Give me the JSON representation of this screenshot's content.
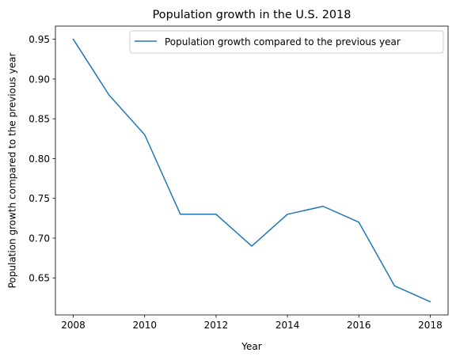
{
  "chart_data": {
    "type": "line",
    "title": "Population growth in the U.S. 2018",
    "xlabel": "Year",
    "ylabel": "Population growth compared to the previous year",
    "x": [
      2008,
      2009,
      2010,
      2011,
      2012,
      2013,
      2014,
      2015,
      2016,
      2017,
      2018
    ],
    "series": [
      {
        "name": "Population growth compared to the previous year",
        "color": "#1f77b4",
        "values": [
          0.95,
          0.88,
          0.83,
          0.73,
          0.73,
          0.69,
          0.73,
          0.74,
          0.72,
          0.64,
          0.62
        ]
      }
    ],
    "x_ticks": [
      2008,
      2010,
      2012,
      2014,
      2016,
      2018
    ],
    "x_tick_labels": [
      "2008",
      "2010",
      "2012",
      "2014",
      "2016",
      "2018"
    ],
    "y_ticks": [
      0.65,
      0.7,
      0.75,
      0.8,
      0.85,
      0.9,
      0.95
    ],
    "y_tick_labels": [
      "0.65",
      "0.70",
      "0.75",
      "0.80",
      "0.85",
      "0.90",
      "0.95"
    ],
    "xlim": [
      2007.5,
      2018.5
    ],
    "ylim": [
      0.6035,
      0.9665
    ],
    "grid": false,
    "legend_position": "top-right"
  }
}
